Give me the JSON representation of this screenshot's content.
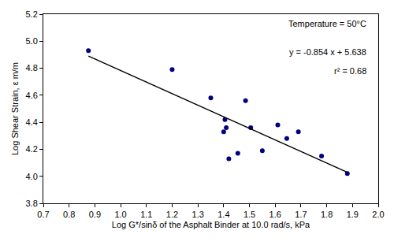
{
  "chart_data": {
    "type": "scatter",
    "x_label": "Log G*/sinδ of the Asphalt Binder at 10.0 rad/s, kPa",
    "y_label": "Log Shear Strain, ε m/m",
    "annotations": [
      "Temperature = 50°C",
      "y = -0.854 x + 5.638",
      "r² = 0.68"
    ],
    "series": [
      {
        "type": "scatter",
        "marker": "circle",
        "color": "#000080",
        "x": [
          0.875,
          1.2,
          1.35,
          1.4,
          1.405,
          1.41,
          1.42,
          1.455,
          1.485,
          1.505,
          1.55,
          1.61,
          1.645,
          1.69,
          1.78,
          1.88
        ],
        "values": [
          4.93,
          4.79,
          4.58,
          4.33,
          4.42,
          4.36,
          4.13,
          4.17,
          4.56,
          4.36,
          4.19,
          4.38,
          4.28,
          4.33,
          4.15,
          4.02
        ]
      },
      {
        "type": "line",
        "line_style": "solid",
        "color": "#000000",
        "x": [
          0.875,
          1.88
        ],
        "values": [
          4.89,
          4.03
        ]
      }
    ],
    "xlim": [
      0.7,
      2.0
    ],
    "xticks": [
      0.7,
      0.8,
      0.9,
      {
        "value": 1.0,
        "label": "1.0"
      },
      1.1,
      1.2,
      1.3,
      1.4,
      1.5,
      1.6,
      1.7,
      1.8,
      1.9,
      {
        "value": 2.0,
        "label": "2.0"
      }
    ],
    "ylim": [
      3.8,
      5.2
    ],
    "yticks": [
      3.8,
      {
        "value": 4.0,
        "label": "4.0"
      },
      4.2,
      4.4,
      4.6,
      4.8,
      {
        "value": 5.0,
        "label": "5.0"
      },
      5.2
    ],
    "grid": false
  }
}
